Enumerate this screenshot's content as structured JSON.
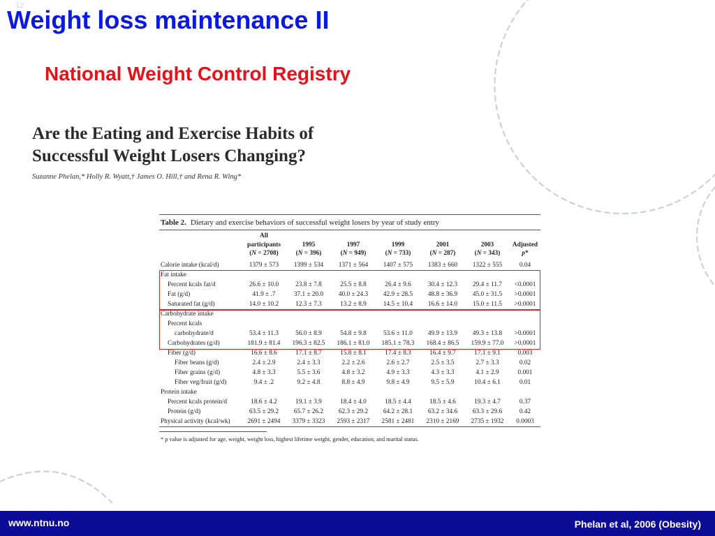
{
  "slide": {
    "number": "12",
    "title": "Weight loss maintenance II",
    "subtitle": "National Weight Control Registry"
  },
  "paper": {
    "title_line1": "Are the Eating and Exercise Habits of",
    "title_line2": "Successful Weight Losers Changing?",
    "authors": "Suzanne Phelan,* Holly R. Wyatt,† James O. Hill,† and Rena R. Wing*"
  },
  "table": {
    "label": "Table 2.",
    "caption": "Dietary and exercise behaviors of successful weight losers by year of study entry",
    "headers": [
      {
        "line1": "All",
        "line2": "participants",
        "line3": "(N = 2708)"
      },
      {
        "line1": "",
        "line2": "1995",
        "line3": "(N = 396)"
      },
      {
        "line1": "",
        "line2": "1997",
        "line3": "(N = 949)"
      },
      {
        "line1": "",
        "line2": "1999",
        "line3": "(N = 733)"
      },
      {
        "line1": "",
        "line2": "2001",
        "line3": "(N = 287)"
      },
      {
        "line1": "",
        "line2": "2003",
        "line3": "(N = 343)"
      },
      {
        "line1": "",
        "line2": "Adjusted",
        "line3": "p*"
      }
    ],
    "rows": [
      {
        "label": "Calorie intake (kcal/d)",
        "indent": 0,
        "values": [
          "1379 ± 573",
          "1399 ± 534",
          "1371 ± 564",
          "1407 ± 575",
          "1383 ± 660",
          "1322 ± 555",
          "0.04"
        ]
      },
      {
        "label": "Fat intake",
        "indent": 0,
        "values": []
      },
      {
        "label": "Percent kcals fat/d",
        "indent": 1,
        "values": [
          "26.6 ± 10.0",
          "23.8 ± 7.8",
          "25.5 ± 8.8",
          "26.4 ± 9.6",
          "30.4 ± 12.3",
          "29.4 ± 11.7",
          "<0.0001"
        ]
      },
      {
        "label": "Fat (g/d)",
        "indent": 1,
        "values": [
          "41.9 ± .7",
          "37.1 ± 20.0",
          "40.0 ± 24.3",
          "42.9 ± 28.5",
          "48.8 ± 36.9",
          "45.0 ± 31.5",
          ">0.0001"
        ]
      },
      {
        "label": "Saturated fat (g/d)",
        "indent": 1,
        "values": [
          "14.0 ± 10.2",
          "12.3 ± 7.3",
          "13.2 ± 8.9",
          "14.5 ± 10.4",
          "16.6 ± 14.0",
          "15.0 ± 11.5",
          ">0.0001"
        ]
      },
      {
        "label": "Carbohydrate intake",
        "indent": 0,
        "values": []
      },
      {
        "label": "Percent kcals",
        "indent": 1,
        "values": []
      },
      {
        "label": "carbohydrate/d",
        "indent": 2,
        "values": [
          "53.4 ± 11.3",
          "56.0 ± 8.9",
          "54.8 ± 9.8",
          "53.6 ± 11.0",
          "49.9 ± 13.9",
          "49.3 ± 13.8",
          ">0.0001"
        ]
      },
      {
        "label": "Carbohydrates (g/d)",
        "indent": 1,
        "values": [
          "181.9 ± 81.4",
          "196.3 ± 82.5",
          "186.1 ± 81.0",
          "185.1 ± 78.3",
          "168.4 ± 86.5",
          "159.9 ± 77.0",
          ">0.0001"
        ]
      },
      {
        "label": "Fiber (g/d)",
        "indent": 1,
        "values": [
          "16.6 ± 8.6",
          "17.1 ± 8.7",
          "15.8 ± 8.1",
          "17.4 ± 8.3",
          "16.4 ± 9.7",
          "17.1 ± 9.1",
          "0.003"
        ]
      },
      {
        "label": "Fiber beans (g/d)",
        "indent": 2,
        "values": [
          "2.4 ± 2.9",
          "2.4 ± 3.3",
          "2.2 ± 2.6",
          "2.6 ± 2.7",
          "2.5 ± 3.5",
          "2.7 ± 3.3",
          "0.02"
        ]
      },
      {
        "label": "Fiber grains (g/d)",
        "indent": 2,
        "values": [
          "4.8 ± 3.3",
          "5.5 ± 3.6",
          "4.8 ± 3.2",
          "4.9 ± 3.3",
          "4.3 ± 3.3",
          "4.1 ± 2.9",
          "0.001"
        ]
      },
      {
        "label": "Fiber veg/fruit (g/d)",
        "indent": 2,
        "values": [
          "9.4 ± .2",
          "9.2 ± 4.8",
          "8.8 ± 4.9",
          "9.8 ± 4.9",
          "9.5 ± 5.9",
          "10.4 ± 6.1",
          "0.01"
        ]
      },
      {
        "label": "Protein intake",
        "indent": 0,
        "values": []
      },
      {
        "label": "Percent kcals protein/d",
        "indent": 1,
        "values": [
          "18.6 ± 4.2",
          "19.1 ± 3.9",
          "18.4 ± 4.0",
          "18.5 ± 4.4",
          "18.5 ± 4.6",
          "19.3 ± 4.7",
          "0.37"
        ]
      },
      {
        "label": "Protein (g/d)",
        "indent": 1,
        "values": [
          "63.5 ± 29.2",
          "65.7 ± 26.2",
          "62.3 ± 29.2",
          "64.2 ± 28.1",
          "63.2 ± 34.6",
          "63.3 ± 29.6",
          "0.42"
        ]
      },
      {
        "label": "Physical activity (kcal/wk)",
        "indent": 0,
        "values": [
          "2691 ± 2494",
          "3379 ± 3323",
          "2593 ± 2317",
          "2581 ± 2481",
          "2310 ± 2169",
          "2735 ± 1932",
          "0.0003"
        ]
      }
    ],
    "footnote": "* p value is adjusted for age, weight, weight loss, highest lifetime weight, gender, education, and marital status."
  },
  "footer": {
    "url": "www.ntnu.no",
    "citation": "Phelan et al, 2006 (Obesity)"
  },
  "colors": {
    "title": "#0a1ae0",
    "subtitle": "#e4121b",
    "footer_bar": "#0c0c96",
    "highlight_box": "#d6262b",
    "decoration": "#c9d2dc"
  }
}
